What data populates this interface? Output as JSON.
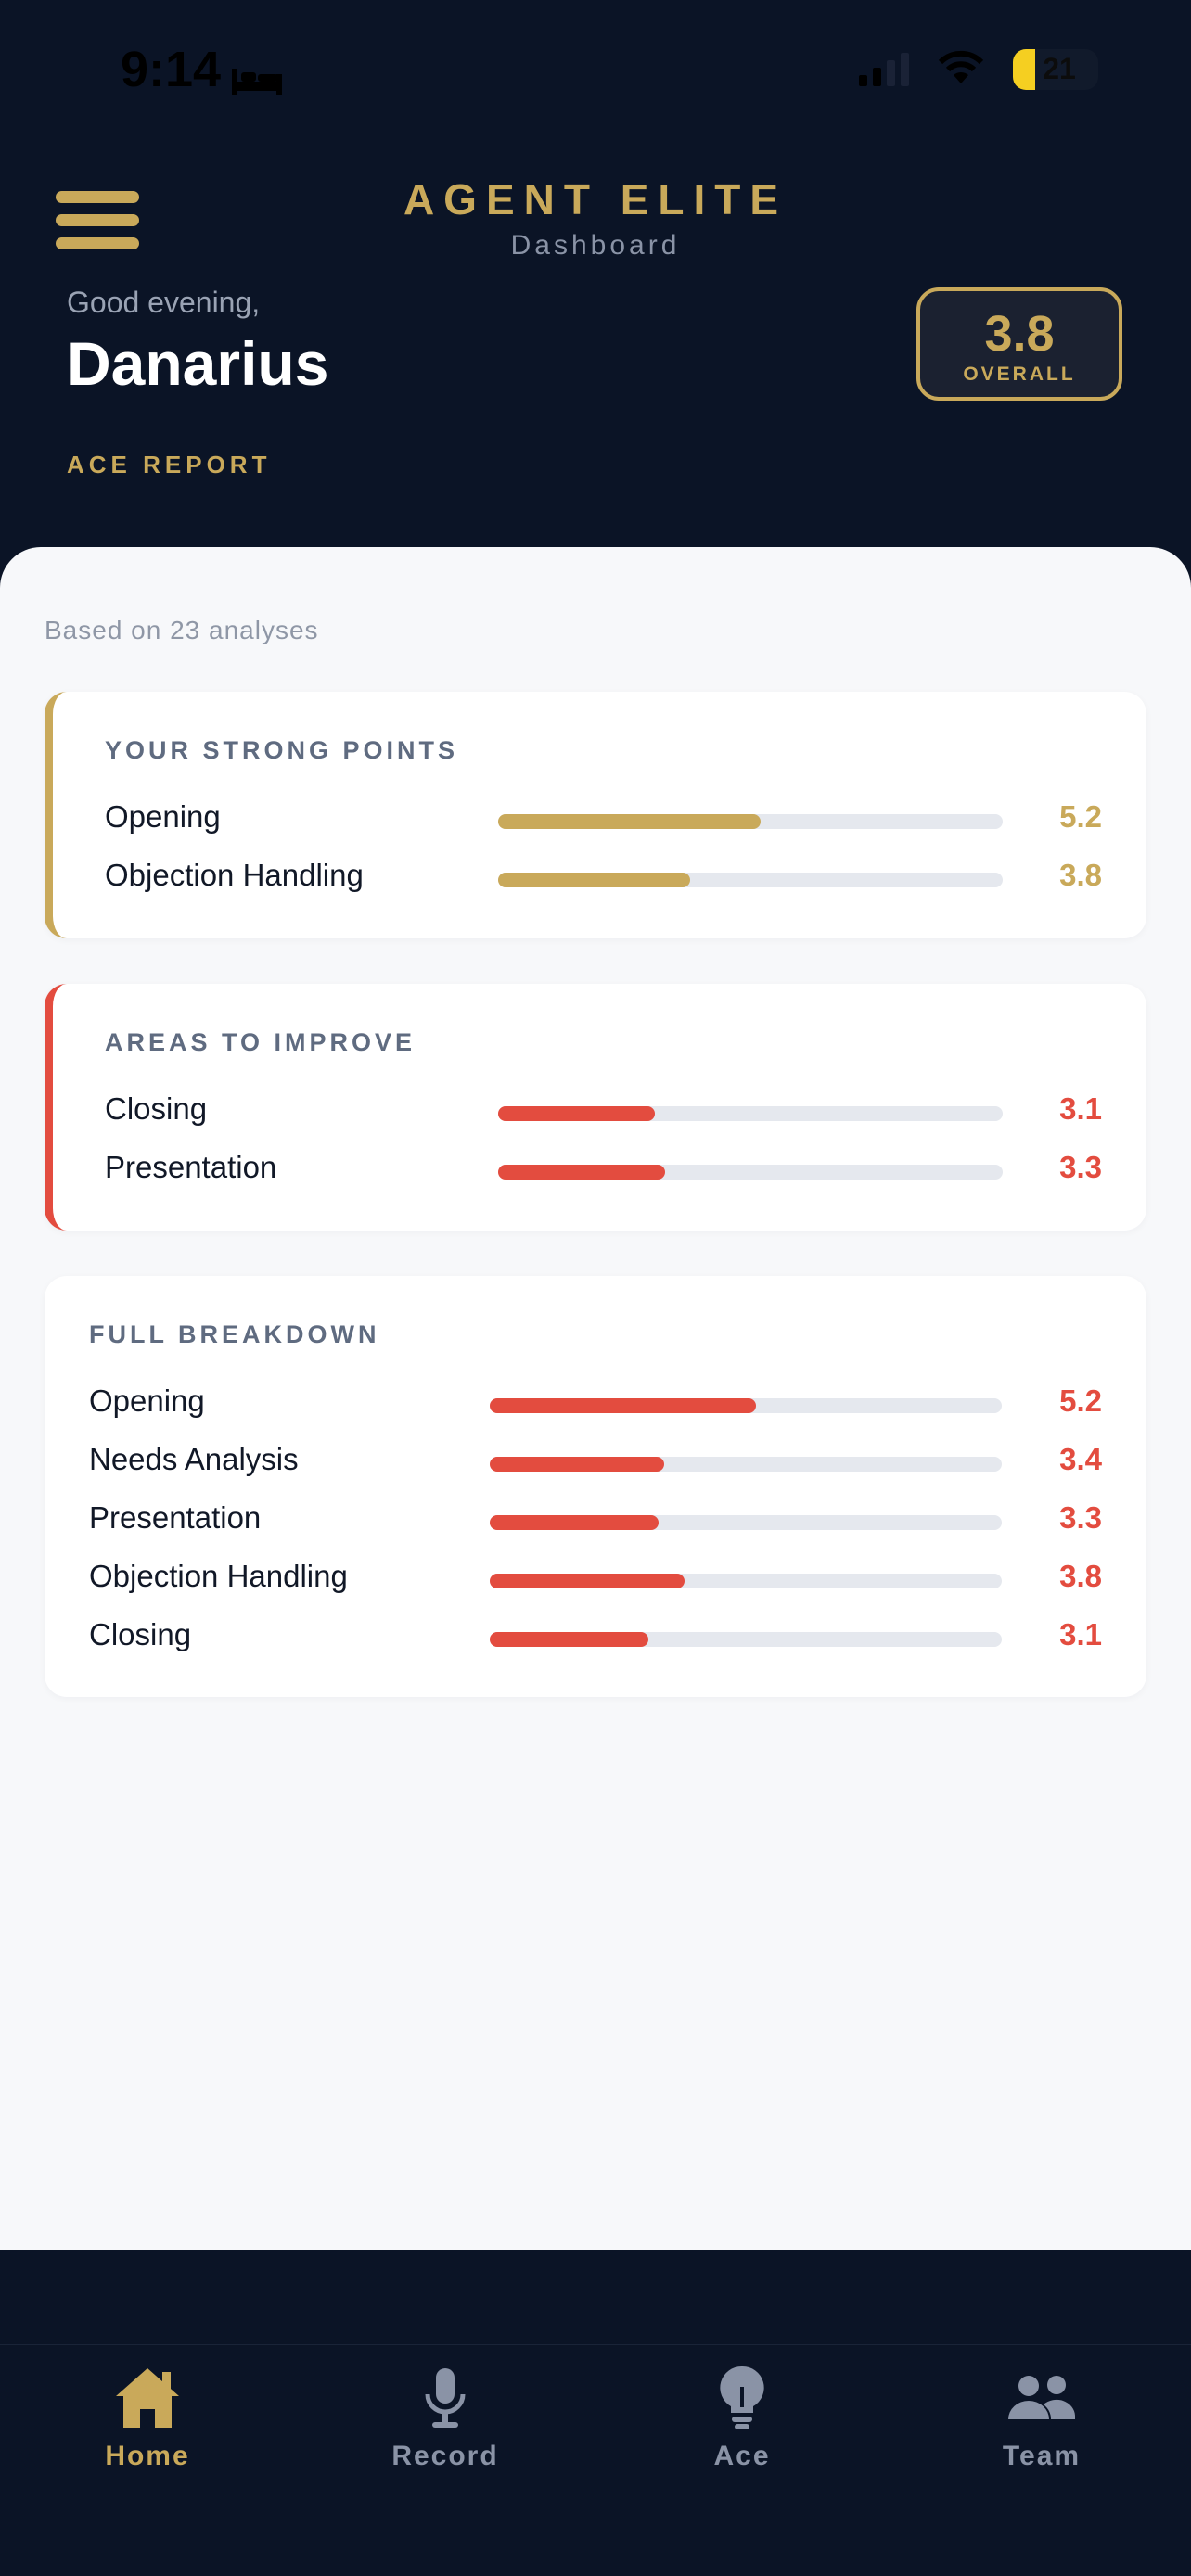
{
  "status_bar": {
    "time": "9:14",
    "battery": "21"
  },
  "header": {
    "brand": "AGENT ELITE",
    "subtitle": "Dashboard",
    "greeting": "Good evening,",
    "user_name": "Danarius",
    "overall_score": "3.8",
    "overall_label": "OVERALL",
    "section_label": "ACE REPORT"
  },
  "content": {
    "based_on": "Based on 23 analyses"
  },
  "strong_points": {
    "title": "YOUR STRONG POINTS",
    "accent_color": "#c9a95a",
    "items": [
      {
        "label": "Opening",
        "value": "5.2",
        "fill": 0.52
      },
      {
        "label": "Objection Handling",
        "value": "3.8",
        "fill": 0.38
      }
    ]
  },
  "improve": {
    "title": "AREAS TO IMPROVE",
    "accent_color": "#e34c3f",
    "items": [
      {
        "label": "Closing",
        "value": "3.1",
        "fill": 0.31
      },
      {
        "label": "Presentation",
        "value": "3.3",
        "fill": 0.33
      }
    ]
  },
  "breakdown": {
    "title": "FULL BREAKDOWN",
    "bar_color": "#e34c3f",
    "items": [
      {
        "label": "Opening",
        "value": "5.2",
        "fill": 0.52
      },
      {
        "label": "Needs Analysis",
        "value": "3.4",
        "fill": 0.34
      },
      {
        "label": "Presentation",
        "value": "3.3",
        "fill": 0.33
      },
      {
        "label": "Objection Handling",
        "value": "3.8",
        "fill": 0.38
      },
      {
        "label": "Closing",
        "value": "3.1",
        "fill": 0.31
      }
    ]
  },
  "nav": {
    "active_color": "#c9a95a",
    "inactive_color": "#8a93a6",
    "items": [
      {
        "label": "Home",
        "icon": "home-icon",
        "active": true
      },
      {
        "label": "Record",
        "icon": "microphone-icon",
        "active": false
      },
      {
        "label": "Ace",
        "icon": "lightbulb-icon",
        "active": false
      },
      {
        "label": "Team",
        "icon": "team-icon",
        "active": false
      }
    ]
  }
}
